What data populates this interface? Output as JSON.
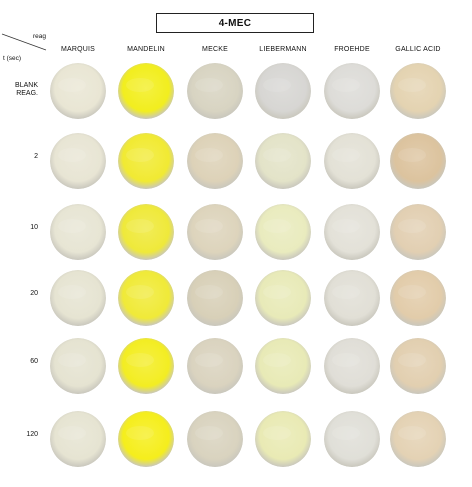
{
  "compound_title": "4-MEC",
  "axis": {
    "reagent_label": "reag",
    "time_label": "t (sec)"
  },
  "reagents": [
    {
      "name": "MARQUIS",
      "icon": "reagent-column"
    },
    {
      "name": "MANDELIN",
      "icon": "reagent-column"
    },
    {
      "name": "MECKE",
      "icon": "reagent-column"
    },
    {
      "name": "LIEBERMANN",
      "icon": "reagent-column"
    },
    {
      "name": "FROEHDE",
      "icon": "reagent-column"
    },
    {
      "name": "GALLIC ACID",
      "icon": "reagent-column"
    }
  ],
  "times": [
    {
      "label_line1": "BLANK",
      "label_line2": "REAG."
    },
    {
      "label_line1": "2",
      "label_line2": ""
    },
    {
      "label_line1": "10",
      "label_line2": ""
    },
    {
      "label_line1": "20",
      "label_line2": ""
    },
    {
      "label_line1": "60",
      "label_line2": ""
    },
    {
      "label_line1": "120",
      "label_line2": ""
    }
  ],
  "well_colors": [
    [
      "#e9e6d4",
      "#f2ee1e",
      "#d8d4c2",
      "#d7d6d3",
      "#dddcd8",
      "#e4d3b1"
    ],
    [
      "#e8e5d4",
      "#f1ea32",
      "#ddd2b8",
      "#e3e3c8",
      "#e3e1d6",
      "#dcc39e"
    ],
    [
      "#e7e5d4",
      "#efe93a",
      "#ddd4bc",
      "#e9ebbe",
      "#e3e1d8",
      "#e2cfb2"
    ],
    [
      "#e6e4d2",
      "#f0ea38",
      "#d8d0b8",
      "#e8eab8",
      "#e1dfd6",
      "#e2ccaa"
    ],
    [
      "#e5e3d1",
      "#f3ed22",
      "#dad3bf",
      "#e8eab6",
      "#e0ded7",
      "#e2cfb0"
    ],
    [
      "#e6e4d2",
      "#f5ee1c",
      "#d9d3bf",
      "#e9eab4",
      "#e0dfd8",
      "#e4d2b4"
    ]
  ]
}
